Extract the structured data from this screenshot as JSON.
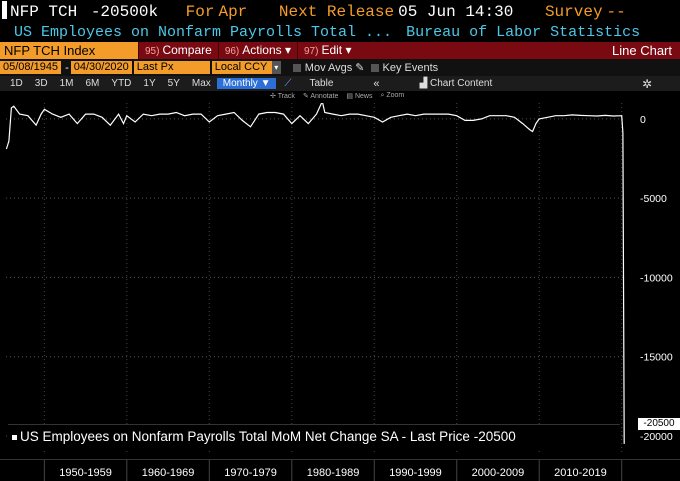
{
  "header": {
    "ticker": "NFP TCH",
    "value": "-20500k",
    "for_label": "For",
    "for_value": "Apr",
    "next_release_label": "Next Release",
    "next_release_value": "05 Jun 14:30",
    "survey_label": "Survey",
    "survey_value": "--"
  },
  "description": {
    "name": "US Employees on Nonfarm Payrolls Total ...",
    "source": "Bureau of Labor Statistics"
  },
  "function_bar": {
    "security": "NFP TCH Index",
    "menus": [
      {
        "num": "95)",
        "label": "Compare"
      },
      {
        "num": "96)",
        "label": "Actions ▾"
      },
      {
        "num": "97)",
        "label": "Edit ▾"
      }
    ],
    "view": "Line Chart"
  },
  "params": {
    "start_date": "05/08/1945",
    "end_date": "04/30/2020",
    "field": "Last Px",
    "currency": "Local CCY",
    "mov_avgs": "Mov Avgs",
    "key_events": "Key Events"
  },
  "timeframes": [
    "1D",
    "3D",
    "1M",
    "6M",
    "YTD",
    "1Y",
    "5Y",
    "Max"
  ],
  "period": "Monthly ▼",
  "table_label": "Table",
  "chart_content_label": "Chart Content",
  "tools": [
    "Track",
    "Annotate",
    "News",
    "Zoom"
  ],
  "legend_text": "US Employees on Nonfarm Payrolls Total MoM Net Change SA - Last Price -20500",
  "last_price_tag": "-20500",
  "chart_data": {
    "type": "line",
    "y_ticks": [
      0,
      -5000,
      -10000,
      -15000,
      -20000
    ],
    "y_tick_labels": [
      "0",
      "-5000",
      "-10000",
      "-15000",
      "-20000"
    ],
    "ylim": [
      -21200,
      1000
    ],
    "x_decades": [
      "1950-1959",
      "1960-1969",
      "1970-1979",
      "1980-1989",
      "1990-1999",
      "2000-2009",
      "2010-2019"
    ],
    "xlim": [
      1945.35,
      2020.4
    ],
    "series": [
      {
        "values": [
          [
            1945.4,
            -1900
          ],
          [
            1945.7,
            -1400
          ],
          [
            1946.0,
            700
          ],
          [
            1946.3,
            800
          ],
          [
            1947.0,
            300
          ],
          [
            1948.0,
            200
          ],
          [
            1949.0,
            -400
          ],
          [
            1949.6,
            300
          ],
          [
            1950.0,
            600
          ],
          [
            1951.0,
            300
          ],
          [
            1952.0,
            100
          ],
          [
            1953.0,
            300
          ],
          [
            1954.0,
            -300
          ],
          [
            1955.0,
            300
          ],
          [
            1956.0,
            300
          ],
          [
            1957.0,
            100
          ],
          [
            1958.0,
            -400
          ],
          [
            1959.0,
            300
          ],
          [
            1959.6,
            -300
          ],
          [
            1960.0,
            200
          ],
          [
            1961.0,
            -200
          ],
          [
            1962.0,
            300
          ],
          [
            1963.0,
            200
          ],
          [
            1964.0,
            300
          ],
          [
            1965.0,
            300
          ],
          [
            1966.0,
            400
          ],
          [
            1967.0,
            200
          ],
          [
            1968.0,
            300
          ],
          [
            1969.0,
            300
          ],
          [
            1970.0,
            -200
          ],
          [
            1971.0,
            200
          ],
          [
            1972.0,
            300
          ],
          [
            1973.0,
            400
          ],
          [
            1974.0,
            -100
          ],
          [
            1975.0,
            -500
          ],
          [
            1976.0,
            300
          ],
          [
            1977.0,
            400
          ],
          [
            1978.0,
            400
          ],
          [
            1979.0,
            300
          ],
          [
            1980.0,
            -300
          ],
          [
            1981.0,
            200
          ],
          [
            1982.0,
            -300
          ],
          [
            1983.0,
            300
          ],
          [
            1983.7,
            1100
          ],
          [
            1984.0,
            400
          ],
          [
            1985.0,
            300
          ],
          [
            1986.0,
            200
          ],
          [
            1987.0,
            300
          ],
          [
            1988.0,
            300
          ],
          [
            1989.0,
            200
          ],
          [
            1990.0,
            100
          ],
          [
            1991.0,
            -200
          ],
          [
            1992.0,
            100
          ],
          [
            1993.0,
            200
          ],
          [
            1994.0,
            300
          ],
          [
            1995.0,
            200
          ],
          [
            1996.0,
            300
          ],
          [
            1997.0,
            300
          ],
          [
            1998.0,
            300
          ],
          [
            1999.0,
            300
          ],
          [
            2000.0,
            200
          ],
          [
            2001.0,
            -100
          ],
          [
            2002.0,
            -100
          ],
          [
            2003.0,
            0
          ],
          [
            2004.0,
            200
          ],
          [
            2005.0,
            200
          ],
          [
            2006.0,
            200
          ],
          [
            2007.0,
            100
          ],
          [
            2008.0,
            -300
          ],
          [
            2008.9,
            -700
          ],
          [
            2009.2,
            -800
          ],
          [
            2009.6,
            -300
          ],
          [
            2010.0,
            0
          ],
          [
            2011.0,
            100
          ],
          [
            2012.0,
            200
          ],
          [
            2013.0,
            200
          ],
          [
            2014.0,
            250
          ],
          [
            2015.0,
            220
          ],
          [
            2016.0,
            200
          ],
          [
            2017.0,
            180
          ],
          [
            2018.0,
            220
          ],
          [
            2019.0,
            180
          ],
          [
            2020.0,
            200
          ],
          [
            2020.15,
            -900
          ],
          [
            2020.3,
            -20500
          ]
        ]
      }
    ]
  }
}
